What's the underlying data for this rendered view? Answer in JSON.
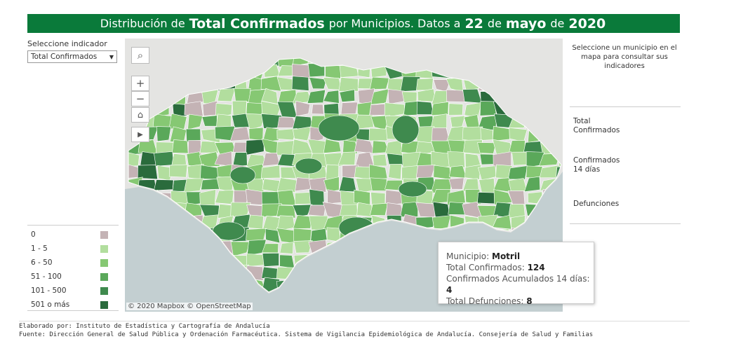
{
  "header": {
    "pre": "Distribución de",
    "indicator": "Total Confirmados",
    "mid": "por Municipios. Datos a",
    "day": "22",
    "de1": "de",
    "month": "mayo",
    "de2": "de",
    "year": "2020"
  },
  "selector": {
    "label": "Seleccione indicador",
    "value": "Total Confirmados"
  },
  "map": {
    "attribution": "© 2020 Mapbox © OpenStreetMap",
    "controls": [
      "search-icon",
      "zoom-in-icon",
      "zoom-out-icon",
      "home-icon",
      "play-icon"
    ]
  },
  "legend": {
    "items": [
      {
        "label": "0",
        "color": "#c4b3b5"
      },
      {
        "label": "1 - 5",
        "color": "#b2de9e"
      },
      {
        "label": "6 - 50",
        "color": "#86c873"
      },
      {
        "label": "51 - 100",
        "color": "#5aa85a"
      },
      {
        "label": "101 - 500",
        "color": "#3f8a4e"
      },
      {
        "label": "501 o más",
        "color": "#2a6b3c"
      }
    ]
  },
  "right_panel": {
    "info": "Seleccione un municipio en el mapa para consultar sus indicadores",
    "total_confirmados": "Total Confirmados",
    "confirmados_14": "Confirmados 14 días",
    "defunciones": "Defunciones"
  },
  "tooltip": {
    "municipio_label": "Municipio:",
    "municipio": "Motril",
    "total_label": "Total Confirmados:",
    "total": "124",
    "acum_label": "Confirmados Acumulados 14 días:",
    "acum": "4",
    "def_label": "Total Defunciones:",
    "def": "8"
  },
  "footer": {
    "line1": "Elaborado por: Instituto de Estadística y Cartografía de Andalucía",
    "line2": "Fuente: Dirección General de Salud Pública y Ordenación Farmacéutica. Sistema de Vigilancia Epidemiológica de Andalucía. Consejería de Salud y Familias"
  },
  "colors": {
    "banner": "#0a7a3a",
    "sea": "#c3cfd1",
    "land_bg": "#e4e4e2"
  }
}
